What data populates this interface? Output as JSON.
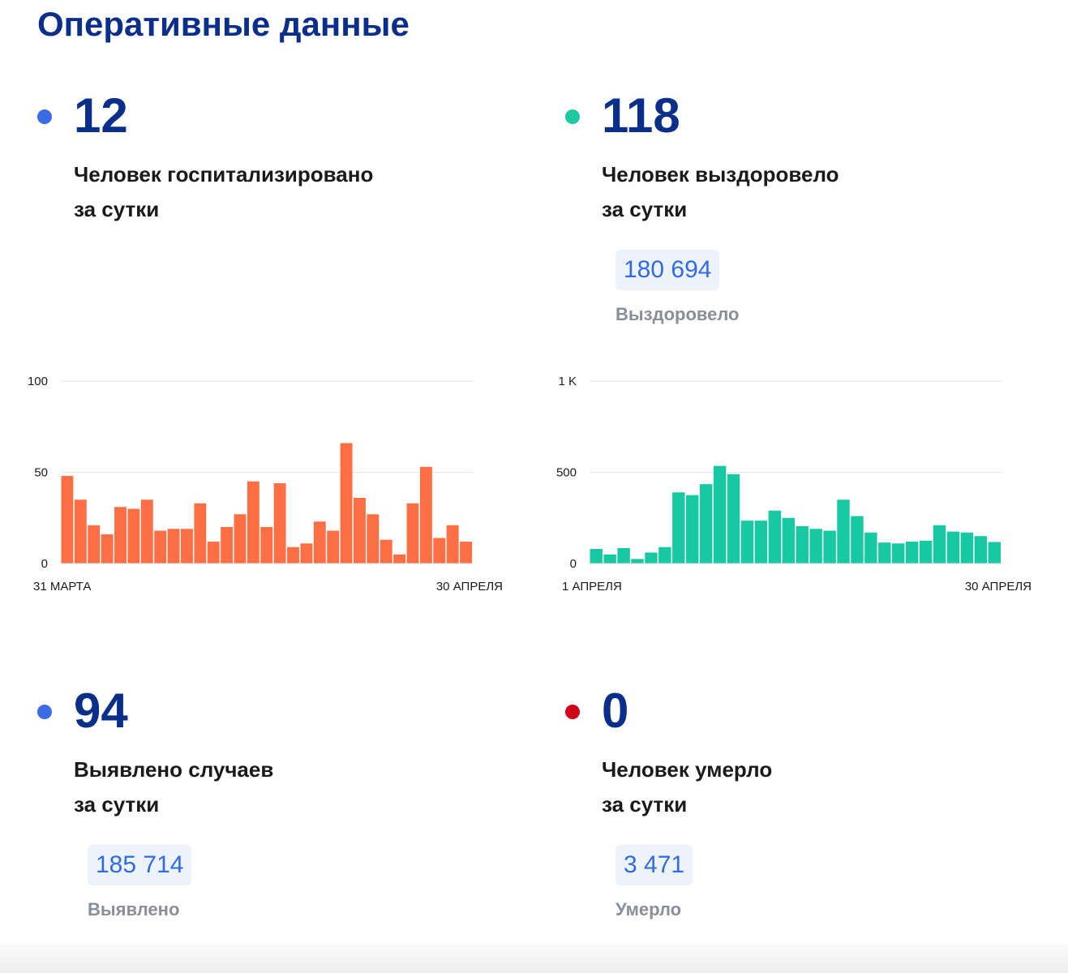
{
  "page_title": "Оперативные данные",
  "colors": {
    "title": "#0a2f8a",
    "dot_blue": "#3b6ce6",
    "dot_teal": "#1ec9a0",
    "dot_red": "#d0021b",
    "bar_orange": "#ff6f43",
    "bar_teal": "#16c9a0",
    "pill_bg": "#eef2fb",
    "pill_text": "#2f6be3"
  },
  "stats": {
    "hospitalized": {
      "value": "12",
      "desc_line1": "Человек госпитализировано",
      "desc_line2": "за сутки",
      "dot_color": "blue"
    },
    "recovered": {
      "value": "118",
      "desc_line1": "Человек выздоровело",
      "desc_line2": "за сутки",
      "total": "180 694",
      "total_label": "Выздоровело",
      "dot_color": "teal"
    },
    "cases": {
      "value": "94",
      "desc_line1": "Выявлено случаев",
      "desc_line2": "за сутки",
      "total": "185 714",
      "total_label": "Выявлено",
      "dot_color": "blue"
    },
    "deaths": {
      "value": "0",
      "desc_line1": "Человек умерло",
      "desc_line2": "за сутки",
      "total": "3 471",
      "total_label": "Умерло",
      "dot_color": "red"
    }
  },
  "chart_data": [
    {
      "type": "bar",
      "series_color": "#ff6f43",
      "ylim": [
        0,
        100
      ],
      "y_ticks": [
        0,
        50,
        100
      ],
      "y_tick_labels": [
        "0",
        "50",
        "100"
      ],
      "x_start_label": "31 МАРТА",
      "x_end_label": "30 АПРЕЛЯ",
      "grid": true,
      "values": [
        48,
        35,
        21,
        16,
        31,
        30,
        35,
        18,
        19,
        19,
        33,
        12,
        20,
        27,
        45,
        20,
        44,
        9,
        11,
        23,
        18,
        66,
        36,
        27,
        13,
        5,
        33,
        53,
        14,
        21,
        12
      ]
    },
    {
      "type": "bar",
      "series_color": "#16c9a0",
      "ylim": [
        0,
        1000
      ],
      "y_ticks": [
        0,
        500,
        1000
      ],
      "y_tick_labels": [
        "0",
        "500",
        "1 K"
      ],
      "x_start_label": "1 АПРЕЛЯ",
      "x_end_label": "30 АПРЕЛЯ",
      "grid": true,
      "values": [
        80,
        50,
        85,
        25,
        60,
        90,
        390,
        375,
        435,
        535,
        490,
        235,
        235,
        290,
        250,
        205,
        190,
        180,
        350,
        260,
        170,
        115,
        110,
        120,
        125,
        210,
        175,
        170,
        150,
        118
      ]
    }
  ]
}
